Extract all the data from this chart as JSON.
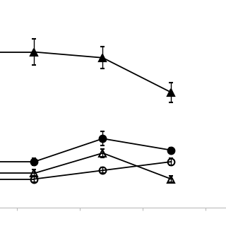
{
  "x": [
    1,
    2,
    3
  ],
  "series": {
    "filled_triangle": {
      "y": [
        0.82,
        0.8,
        0.68
      ],
      "yerr": [
        0.045,
        0.038,
        0.035
      ],
      "marker": "^",
      "fillstyle": "full",
      "color": "#000000",
      "markersize": 7,
      "linewidth": 1.3
    },
    "filled_circle": {
      "y": [
        0.44,
        0.52,
        0.48
      ],
      "yerr": [
        0.012,
        0.025,
        0.01
      ],
      "marker": "o",
      "fillstyle": "full",
      "color": "#000000",
      "markersize": 7,
      "linewidth": 1.3
    },
    "open_triangle": {
      "y": [
        0.4,
        0.47,
        0.38
      ],
      "yerr": [
        0.012,
        0.015,
        0.01
      ],
      "marker": "^",
      "fillstyle": "none",
      "color": "#000000",
      "markersize": 7,
      "linewidth": 1.3
    },
    "open_circle": {
      "y": [
        0.38,
        0.41,
        0.44
      ],
      "yerr": [
        0.012,
        0.01,
        0.012
      ],
      "marker": "o",
      "fillstyle": "none",
      "color": "#000000",
      "markersize": 7,
      "linewidth": 1.3
    }
  },
  "xlim": [
    0.5,
    3.8
  ],
  "ylim": [
    0.28,
    1.0
  ],
  "x_line_extends_left": true,
  "background_color": "#ffffff",
  "figsize": [
    3.2,
    3.2
  ],
  "dpi": 100
}
